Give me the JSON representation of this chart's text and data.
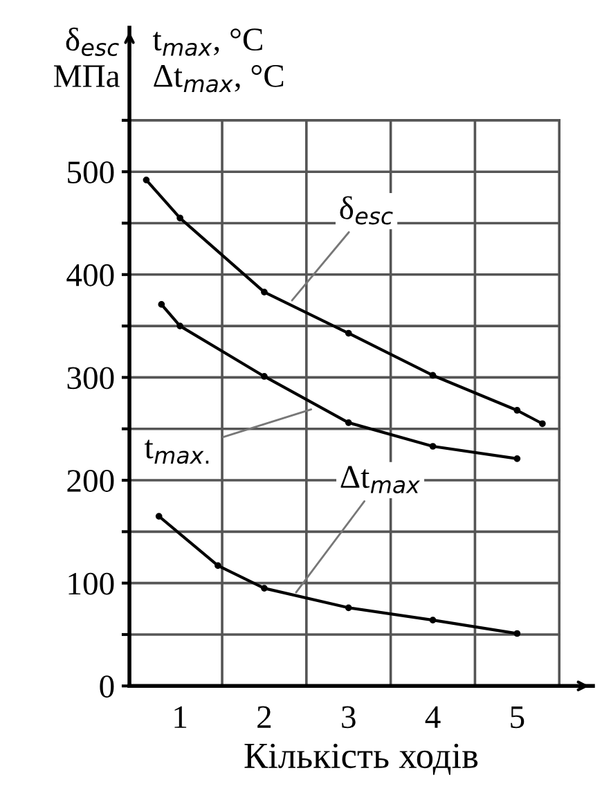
{
  "chart_data": {
    "type": "line",
    "xlabel": "Кількість ходів",
    "ylabel": "δ$_{esc}$\nМПа",
    "annotations": [
      "t$_{max}$, °C\nΔt$_{max}$, °C",
      {
        "text": "δ$_{esc}$",
        "x": 2.3,
        "y": 372
      },
      {
        "text": "t$_{max.}$",
        "x": 2.6,
        "y": 270
      },
      {
        "text": "Δt$_{max}$",
        "x": 2.35,
        "y": 88
      }
    ],
    "series": [
      {
        "color": "#000000",
        "x": [
          0.6,
          1,
          2,
          3,
          4,
          5,
          5.3
        ],
        "values": [
          492,
          455,
          383,
          343,
          302,
          268,
          255
        ]
      },
      {
        "color": "#000000",
        "x": [
          0.78,
          1,
          2,
          3,
          4,
          5
        ],
        "values": [
          371,
          350,
          301,
          256,
          233,
          221
        ]
      },
      {
        "color": "#000000",
        "x": [
          0.75,
          1.45,
          2,
          3,
          4,
          5
        ],
        "values": [
          165,
          117,
          95,
          76,
          64,
          51
        ]
      }
    ],
    "xlim": [
      0.4,
      5.9
    ],
    "ylim": [
      0,
      640
    ],
    "xticks": [
      1,
      2,
      3,
      4,
      5,
      {
        "value": 1.5,
        "label": null
      },
      {
        "value": 2.5,
        "label": null
      },
      {
        "value": 3.5,
        "label": null
      },
      {
        "value": 4.5,
        "label": null
      },
      {
        "value": 5.5,
        "label": null
      }
    ],
    "yticks": [
      0,
      100,
      200,
      300,
      400,
      500,
      {
        "value": 50,
        "label": null
      },
      {
        "value": 150,
        "label": null
      },
      {
        "value": 250,
        "label": null
      },
      {
        "value": 350,
        "label": null
      },
      {
        "value": 450,
        "label": null
      },
      {
        "value": 550,
        "label": null
      }
    ],
    "grid": true,
    "marker": "circle",
    "line_style": "solid"
  }
}
